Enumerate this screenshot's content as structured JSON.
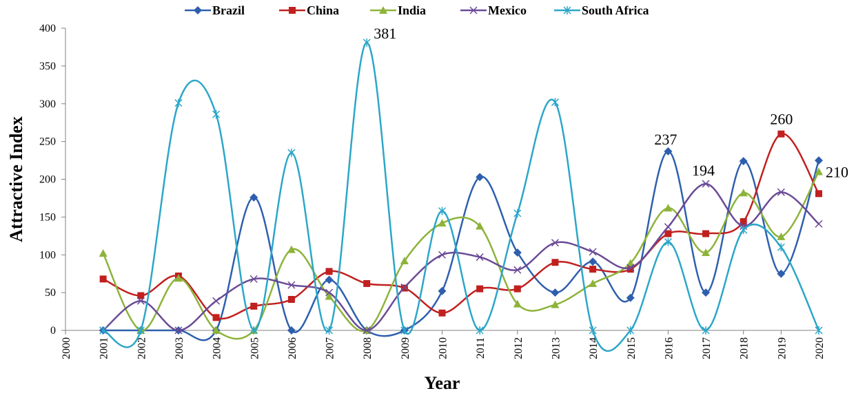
{
  "chart_data": {
    "type": "line",
    "smooth": true,
    "title": "",
    "xlabel": "Year",
    "ylabel": "Attractive Index",
    "x_ticks": [
      "2000",
      "2001",
      "2002",
      "2003",
      "2004",
      "2005",
      "2006",
      "2007",
      "2008",
      "2009",
      "2010",
      "2011",
      "2012",
      "2013",
      "2014",
      "2015",
      "2016",
      "2017",
      "2018",
      "2019",
      "2020"
    ],
    "x": [
      2001,
      2002,
      2003,
      2004,
      2005,
      2006,
      2007,
      2008,
      2009,
      2010,
      2011,
      2012,
      2013,
      2014,
      2015,
      2016,
      2017,
      2018,
      2019,
      2020
    ],
    "xlim": [
      2000,
      2020
    ],
    "ylim": [
      0,
      400
    ],
    "y_ticks": [
      0,
      50,
      100,
      150,
      200,
      250,
      300,
      350,
      400
    ],
    "grid": false,
    "legend_position": "top",
    "series": [
      {
        "name": "Brazil",
        "color": "#2E5FAE",
        "marker": "diamond",
        "values": [
          0,
          0,
          0,
          0,
          176,
          0,
          67,
          0,
          0,
          52,
          203,
          103,
          50,
          91,
          43,
          237,
          50,
          224,
          75,
          225
        ]
      },
      {
        "name": "China",
        "color": "#C0201E",
        "marker": "square",
        "values": [
          68,
          46,
          72,
          17,
          32,
          41,
          78,
          62,
          56,
          23,
          55,
          55,
          90,
          81,
          81,
          128,
          128,
          144,
          260,
          181
        ]
      },
      {
        "name": "India",
        "color": "#8DB33A",
        "marker": "triangle",
        "values": [
          102,
          0,
          69,
          0,
          0,
          107,
          45,
          0,
          92,
          142,
          138,
          35,
          34,
          62,
          89,
          162,
          103,
          182,
          124,
          210
        ]
      },
      {
        "name": "Mexico",
        "color": "#6A4A96",
        "marker": "x",
        "values": [
          0,
          39,
          0,
          39,
          68,
          60,
          50,
          0,
          57,
          100,
          97,
          80,
          116,
          104,
          83,
          137,
          194,
          138,
          183,
          141
        ]
      },
      {
        "name": "South Africa",
        "color": "#2BA6C8",
        "marker": "star",
        "values": [
          0,
          0,
          301,
          286,
          0,
          235,
          0,
          381,
          0,
          158,
          0,
          155,
          302,
          0,
          0,
          117,
          0,
          133,
          110,
          0
        ]
      }
    ],
    "annotations": [
      {
        "text": "381",
        "x": 2008,
        "y": 381
      },
      {
        "text": "237",
        "x": 2016,
        "y": 237
      },
      {
        "text": "194",
        "x": 2017,
        "y": 194
      },
      {
        "text": "260",
        "x": 2019,
        "y": 260
      },
      {
        "text": "210",
        "x": 2020,
        "y": 210
      }
    ]
  }
}
